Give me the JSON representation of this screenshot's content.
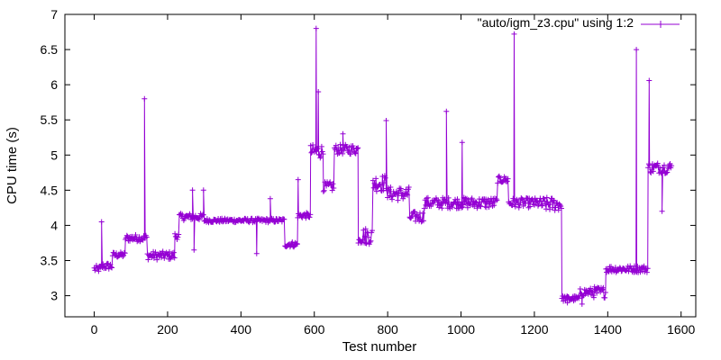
{
  "chart_data": {
    "type": "line",
    "marker": "plus",
    "xlabel": "Test number",
    "ylabel": "CPU time (s)",
    "xlim": [
      -80,
      1640
    ],
    "ylim": [
      2.7,
      7
    ],
    "xticks": [
      0,
      200,
      400,
      600,
      800,
      1000,
      1200,
      1400,
      1600
    ],
    "yticks": [
      3,
      3.5,
      4,
      4.5,
      5,
      5.5,
      6,
      6.5,
      7
    ],
    "ytick_labels": [
      "3",
      "3.5",
      "4",
      "4.5",
      "5",
      "5.5",
      "6",
      "6.5",
      "7"
    ],
    "grid": false,
    "legend_position": "top-right",
    "series": [
      {
        "name": "\"auto/igm_z3.cpu\" using 1:2",
        "color": "#9400d3",
        "segments": [
          {
            "x0": 0,
            "x1": 20,
            "base": 3.38,
            "noise": 0.05
          },
          {
            "x0": 20,
            "x1": 50,
            "base": 3.42,
            "noise": 0.05
          },
          {
            "x0": 50,
            "x1": 85,
            "base": 3.58,
            "noise": 0.04
          },
          {
            "x0": 85,
            "x1": 145,
            "base": 3.82,
            "noise": 0.05
          },
          {
            "x0": 145,
            "x1": 220,
            "base": 3.57,
            "noise": 0.06
          },
          {
            "x0": 220,
            "x1": 232,
            "base": 3.85,
            "noise": 0.05
          },
          {
            "x0": 232,
            "x1": 300,
            "base": 4.12,
            "noise": 0.05
          },
          {
            "x0": 300,
            "x1": 520,
            "base": 4.07,
            "noise": 0.03
          },
          {
            "x0": 520,
            "x1": 555,
            "base": 3.73,
            "noise": 0.04
          },
          {
            "x0": 555,
            "x1": 590,
            "base": 4.14,
            "noise": 0.04
          },
          {
            "x0": 590,
            "x1": 625,
            "base": 5.05,
            "noise": 0.1
          },
          {
            "x0": 625,
            "x1": 655,
            "base": 4.55,
            "noise": 0.07
          },
          {
            "x0": 655,
            "x1": 720,
            "base": 5.08,
            "noise": 0.07
          },
          {
            "x0": 720,
            "x1": 760,
            "base": 3.85,
            "noise": 0.12
          },
          {
            "x0": 760,
            "x1": 800,
            "base": 4.6,
            "noise": 0.12
          },
          {
            "x0": 800,
            "x1": 860,
            "base": 4.45,
            "noise": 0.1
          },
          {
            "x0": 860,
            "x1": 900,
            "base": 4.12,
            "noise": 0.08
          },
          {
            "x0": 900,
            "x1": 1100,
            "base": 4.32,
            "noise": 0.08
          },
          {
            "x0": 1100,
            "x1": 1130,
            "base": 4.65,
            "noise": 0.05
          },
          {
            "x0": 1130,
            "x1": 1220,
            "base": 4.32,
            "noise": 0.07
          },
          {
            "x0": 1220,
            "x1": 1275,
            "base": 4.3,
            "noise": 0.1
          },
          {
            "x0": 1275,
            "x1": 1325,
            "base": 2.96,
            "noise": 0.04
          },
          {
            "x0": 1325,
            "x1": 1360,
            "base": 3.05,
            "noise": 0.06
          },
          {
            "x0": 1360,
            "x1": 1395,
            "base": 3.05,
            "noise": 0.08
          },
          {
            "x0": 1395,
            "x1": 1510,
            "base": 3.38,
            "noise": 0.05
          },
          {
            "x0": 1510,
            "x1": 1575,
            "base": 4.82,
            "noise": 0.08
          }
        ],
        "spikes": [
          {
            "x": 20,
            "y": 4.05
          },
          {
            "x": 137,
            "y": 5.8
          },
          {
            "x": 268,
            "y": 4.5
          },
          {
            "x": 298,
            "y": 4.5
          },
          {
            "x": 480,
            "y": 4.38
          },
          {
            "x": 556,
            "y": 4.65
          },
          {
            "x": 605,
            "y": 6.8
          },
          {
            "x": 611,
            "y": 5.9
          },
          {
            "x": 678,
            "y": 5.3
          },
          {
            "x": 796,
            "y": 5.49
          },
          {
            "x": 960,
            "y": 5.62
          },
          {
            "x": 1003,
            "y": 5.18
          },
          {
            "x": 1145,
            "y": 6.72
          },
          {
            "x": 1478,
            "y": 6.5
          },
          {
            "x": 1513,
            "y": 6.06
          }
        ],
        "dips": [
          {
            "x": 272,
            "y": 3.65
          },
          {
            "x": 443,
            "y": 3.6
          },
          {
            "x": 740,
            "y": 3.75
          },
          {
            "x": 1290,
            "y": 2.9
          },
          {
            "x": 1330,
            "y": 2.88
          },
          {
            "x": 1548,
            "y": 4.2
          }
        ]
      }
    ]
  }
}
